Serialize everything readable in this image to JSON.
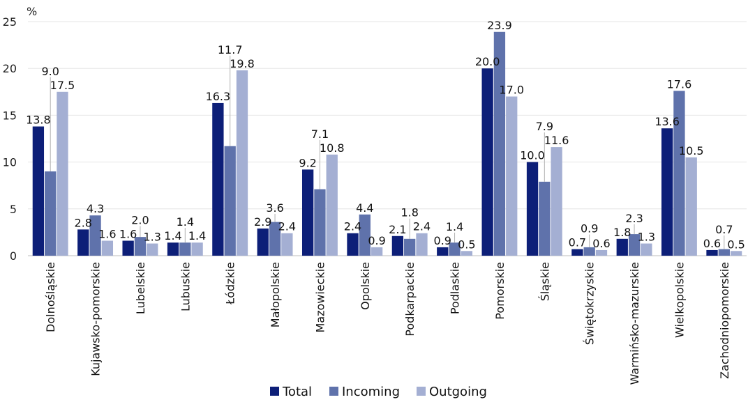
{
  "chart_data": {
    "type": "bar",
    "title": "",
    "xlabel": "",
    "ylabel": "%",
    "ylim": [
      0,
      25
    ],
    "yticks": [
      0,
      5,
      10,
      15,
      20,
      25
    ],
    "grid": true,
    "legend_position": "bottom-center",
    "categories": [
      "Dolnośląskie",
      "Kujawsko-pomorskie",
      "Lubelskie",
      "Lubuskie",
      "Łódzkie",
      "Małopolskie",
      "Mazowieckie",
      "Opolskie",
      "Podkarpackie",
      "Podlaskie",
      "Pomorskie",
      "Śląskie",
      "Świętokrzyskie",
      "Warmińsko-mazurskie",
      "Wielkopolskie",
      "Zachodniopomorskie"
    ],
    "series": [
      {
        "name": "Total",
        "color": "#0d1f78",
        "values": [
          13.8,
          2.8,
          1.6,
          1.4,
          16.3,
          2.9,
          9.2,
          2.4,
          2.1,
          0.9,
          20.0,
          10.0,
          0.7,
          1.8,
          13.6,
          0.6
        ]
      },
      {
        "name": "Incoming",
        "color": "#5f72ab",
        "values": [
          9.0,
          4.3,
          2.0,
          1.4,
          11.7,
          3.6,
          7.1,
          4.4,
          1.8,
          1.4,
          23.9,
          7.9,
          0.9,
          2.3,
          17.6,
          0.7
        ]
      },
      {
        "name": "Outgoing",
        "color": "#a4afd3",
        "values": [
          17.5,
          1.6,
          1.3,
          1.4,
          19.8,
          2.4,
          10.8,
          0.9,
          2.4,
          0.5,
          17.0,
          11.6,
          0.6,
          1.3,
          10.5,
          0.5
        ]
      }
    ]
  }
}
